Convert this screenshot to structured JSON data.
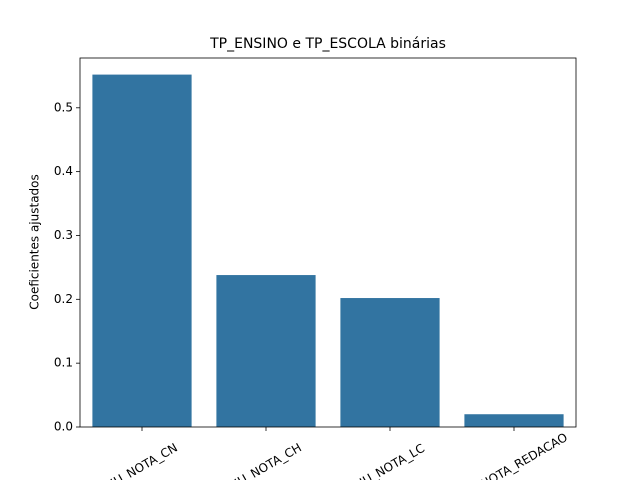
{
  "chart_data": {
    "type": "bar",
    "title": "TP_ENSINO e TP_ESCOLA binárias",
    "ylabel": "Coeficientes ajustados",
    "categories": [
      "NU_NOTA_CN",
      "NU_NOTA_CH",
      "NU_NOTA_LC",
      "NU_NOTA_REDACAO"
    ],
    "values": [
      0.552,
      0.238,
      0.202,
      0.02
    ],
    "color": "#3274a1",
    "ylim": [
      0,
      0.578
    ],
    "yticks": [
      {
        "value": 0,
        "label": "0.0"
      },
      0.1,
      0.2,
      0.3,
      0.4,
      0.5
    ],
    "grid": false
  }
}
